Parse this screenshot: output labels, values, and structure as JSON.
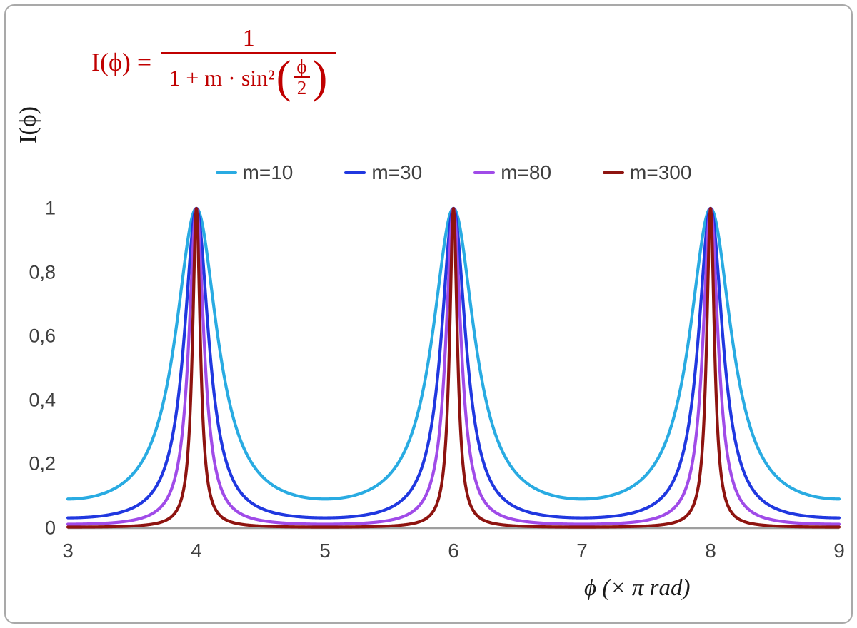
{
  "chart_data": {
    "type": "line",
    "title": "",
    "function": "I(x) = 1 / (1 + m * sin^2(x*pi/2)), x in units of pi rad",
    "xlabel": "ϕ  (× π rad)",
    "ylabel": "I(ϕ)",
    "xlim": [
      3,
      9
    ],
    "ylim": [
      0,
      1
    ],
    "grid": false,
    "legend_position": "top-center",
    "x_tick_labels": [
      "3",
      "4",
      "5",
      "6",
      "7",
      "8",
      "9"
    ],
    "x_tick_values": [
      3,
      4,
      5,
      6,
      7,
      8,
      9
    ],
    "y_tick_labels": [
      "0",
      "0,2",
      "0,4",
      "0,6",
      "0,8",
      "1"
    ],
    "y_tick_values": [
      0,
      0.2,
      0.4,
      0.6,
      0.8,
      1
    ],
    "peaks_at_x": [
      4,
      6,
      8
    ],
    "peak_value": 1,
    "axis_color": "#9e9e9e",
    "tick_color": "#3f3f3f",
    "frame_color": "#a9a9a9",
    "series": [
      {
        "name": "m=10",
        "m": 10,
        "color": "#29ABE2"
      },
      {
        "name": "m=30",
        "m": 30,
        "color": "#2038E0"
      },
      {
        "name": "m=80",
        "m": 80,
        "color": "#A04BE8"
      },
      {
        "name": "m=300",
        "m": 300,
        "color": "#8E1410"
      }
    ],
    "formula": {
      "color": "#c00000",
      "lhs": "I(ϕ) =",
      "numerator": "1",
      "den_prefix": "1 + m · sin²",
      "open_paren": "(",
      "inner_num": "ϕ",
      "inner_den": "2",
      "close_paren": ")"
    }
  }
}
